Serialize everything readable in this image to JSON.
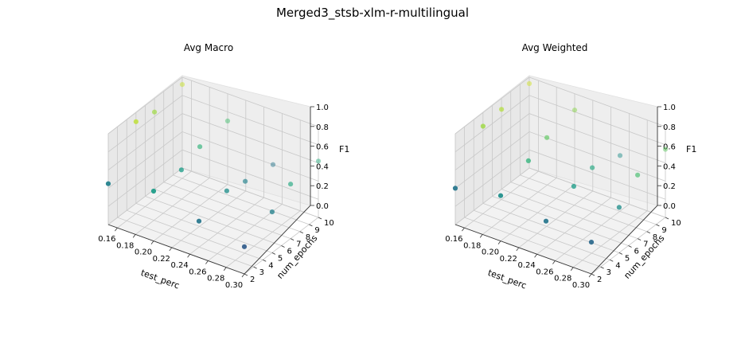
{
  "suptitle": "Merged3_stsb-xlm-r-multilingual",
  "chart_data": [
    {
      "type": "scatter3d",
      "title": "Avg Macro",
      "xlabel": "test_perc",
      "ylabel": "num_epochs",
      "zlabel": "F1",
      "xlim": [
        0.15,
        0.3
      ],
      "ylim": [
        2,
        10
      ],
      "zlim": [
        0.0,
        1.0
      ],
      "xticks": [
        "0.16",
        "0.18",
        "0.20",
        "0.22",
        "0.24",
        "0.26",
        "0.28",
        "0.30"
      ],
      "yticks": [
        "2",
        "3",
        "4",
        "5",
        "6",
        "7",
        "8",
        "9",
        "10"
      ],
      "zticks": [
        "0.0",
        "0.2",
        "0.4",
        "0.6",
        "0.8",
        "1.0"
      ],
      "colormap": "viridis",
      "points": [
        {
          "x": 0.15,
          "y": 2,
          "z": 0.45
        },
        {
          "x": 0.15,
          "y": 5,
          "z": 0.9
        },
        {
          "x": 0.15,
          "y": 7,
          "z": 0.85
        },
        {
          "x": 0.15,
          "y": 10,
          "z": 0.92
        },
        {
          "x": 0.2,
          "y": 2,
          "z": 0.55
        },
        {
          "x": 0.2,
          "y": 5,
          "z": 0.55
        },
        {
          "x": 0.2,
          "y": 7,
          "z": 0.65
        },
        {
          "x": 0.2,
          "y": 10,
          "z": 0.7
        },
        {
          "x": 0.25,
          "y": 2,
          "z": 0.4
        },
        {
          "x": 0.25,
          "y": 5,
          "z": 0.5
        },
        {
          "x": 0.25,
          "y": 7,
          "z": 0.45
        },
        {
          "x": 0.25,
          "y": 10,
          "z": 0.4
        },
        {
          "x": 0.3,
          "y": 2,
          "z": 0.3
        },
        {
          "x": 0.3,
          "y": 5,
          "z": 0.45
        },
        {
          "x": 0.3,
          "y": 7,
          "z": 0.6
        },
        {
          "x": 0.3,
          "y": 10,
          "z": 0.62
        }
      ]
    },
    {
      "type": "scatter3d",
      "title": "Avg Weighted",
      "xlabel": "test_perc",
      "ylabel": "num_epochs",
      "zlabel": "F1",
      "xlim": [
        0.15,
        0.3
      ],
      "ylim": [
        2,
        10
      ],
      "zlim": [
        0.0,
        1.0
      ],
      "xticks": [
        "0.16",
        "0.18",
        "0.20",
        "0.22",
        "0.24",
        "0.26",
        "0.28",
        "0.30"
      ],
      "yticks": [
        "2",
        "3",
        "4",
        "5",
        "6",
        "7",
        "8",
        "9",
        "10"
      ],
      "zticks": [
        "0.0",
        "0.2",
        "0.4",
        "0.6",
        "0.8",
        "1.0"
      ],
      "colormap": "viridis",
      "points": [
        {
          "x": 0.15,
          "y": 2,
          "z": 0.4
        },
        {
          "x": 0.15,
          "y": 5,
          "z": 0.85
        },
        {
          "x": 0.15,
          "y": 7,
          "z": 0.88
        },
        {
          "x": 0.15,
          "y": 10,
          "z": 0.93
        },
        {
          "x": 0.2,
          "y": 2,
          "z": 0.5
        },
        {
          "x": 0.2,
          "y": 5,
          "z": 0.65
        },
        {
          "x": 0.2,
          "y": 7,
          "z": 0.75
        },
        {
          "x": 0.2,
          "y": 10,
          "z": 0.82
        },
        {
          "x": 0.25,
          "y": 2,
          "z": 0.4
        },
        {
          "x": 0.25,
          "y": 5,
          "z": 0.55
        },
        {
          "x": 0.25,
          "y": 7,
          "z": 0.6
        },
        {
          "x": 0.25,
          "y": 10,
          "z": 0.5
        },
        {
          "x": 0.3,
          "y": 2,
          "z": 0.35
        },
        {
          "x": 0.3,
          "y": 5,
          "z": 0.5
        },
        {
          "x": 0.3,
          "y": 7,
          "z": 0.7
        },
        {
          "x": 0.3,
          "y": 10,
          "z": 0.75
        }
      ]
    }
  ]
}
